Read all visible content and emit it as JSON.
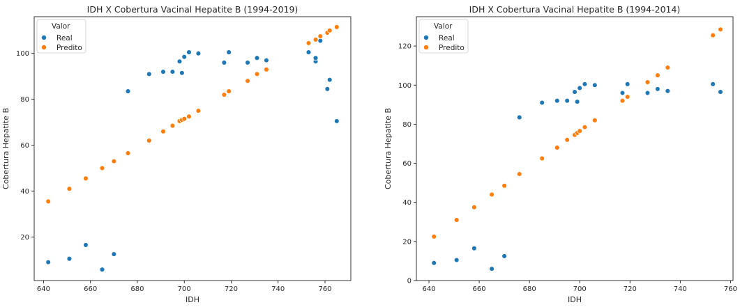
{
  "chart_data": [
    {
      "type": "scatter",
      "title": "IDH X Cobertura Vacinal Hepatite B (1994-2019)",
      "xlabel": "IDH",
      "ylabel": "Cobertura Hepatite B",
      "xlim": [
        636,
        771
      ],
      "ylim": [
        1,
        116
      ],
      "xticks": [
        640,
        660,
        680,
        700,
        720,
        740,
        760
      ],
      "yticks": [
        20,
        40,
        60,
        80,
        100
      ],
      "legend": {
        "title": "Valor",
        "placement": "top-left"
      },
      "grid": false,
      "series": [
        {
          "name": "Real",
          "color": "#1f77b4",
          "points": [
            [
              642,
              9
            ],
            [
              651,
              10.5
            ],
            [
              658,
              16.5
            ],
            [
              665,
              5.8
            ],
            [
              670,
              12.5
            ],
            [
              676,
              83.5
            ],
            [
              685,
              91
            ],
            [
              691,
              92
            ],
            [
              695,
              92
            ],
            [
              698,
              96.5
            ],
            [
              699,
              91.5
            ],
            [
              700,
              98.5
            ],
            [
              702,
              100.5
            ],
            [
              706,
              100
            ],
            [
              717,
              96
            ],
            [
              719,
              100.5
            ],
            [
              727,
              96
            ],
            [
              731,
              98
            ],
            [
              735,
              97
            ],
            [
              753,
              100.5
            ],
            [
              756,
              96.5
            ],
            [
              756,
              98
            ],
            [
              758,
              105.5
            ],
            [
              761,
              84.5
            ],
            [
              762,
              88.5
            ],
            [
              765,
              70.5
            ]
          ]
        },
        {
          "name": "Predito",
          "color": "#ff7f0e",
          "points": [
            [
              642,
              35.5
            ],
            [
              651,
              41
            ],
            [
              658,
              45.5
            ],
            [
              665,
              50
            ],
            [
              670,
              53
            ],
            [
              676,
              56.5
            ],
            [
              685,
              62
            ],
            [
              691,
              66
            ],
            [
              695,
              68.5
            ],
            [
              698,
              70.5
            ],
            [
              699,
              71
            ],
            [
              700,
              71.5
            ],
            [
              702,
              72.5
            ],
            [
              706,
              75
            ],
            [
              717,
              82
            ],
            [
              719,
              83.5
            ],
            [
              727,
              88
            ],
            [
              731,
              91
            ],
            [
              735,
              93
            ],
            [
              753,
              104.5
            ],
            [
              756,
              106
            ],
            [
              758,
              107.5
            ],
            [
              761,
              109
            ],
            [
              762,
              110
            ],
            [
              765,
              111.5
            ]
          ]
        }
      ]
    },
    {
      "type": "scatter",
      "title": "IDH X Cobertura Vacinal Hepatite B (1994-2014)",
      "xlabel": "IDH",
      "ylabel": "Cobertura Hepatite B",
      "xlim": [
        635,
        761
      ],
      "ylim": [
        0,
        135
      ],
      "xticks": [
        640,
        660,
        680,
        700,
        720,
        740,
        760
      ],
      "yticks": [
        0,
        20,
        40,
        60,
        80,
        100,
        120
      ],
      "legend": {
        "title": "Valor",
        "placement": "top-left"
      },
      "grid": false,
      "series": [
        {
          "name": "Real",
          "color": "#1f77b4",
          "points": [
            [
              642,
              9
            ],
            [
              651,
              10.5
            ],
            [
              658,
              16.5
            ],
            [
              665,
              6
            ],
            [
              670,
              12.5
            ],
            [
              676,
              83.5
            ],
            [
              685,
              91
            ],
            [
              691,
              92
            ],
            [
              695,
              92
            ],
            [
              698,
              96.5
            ],
            [
              699,
              91.5
            ],
            [
              700,
              98.5
            ],
            [
              702,
              100.5
            ],
            [
              706,
              100
            ],
            [
              717,
              96
            ],
            [
              719,
              100.5
            ],
            [
              727,
              96
            ],
            [
              731,
              98
            ],
            [
              735,
              97
            ],
            [
              753,
              100.5
            ],
            [
              756,
              96.5
            ]
          ]
        },
        {
          "name": "Predito",
          "color": "#ff7f0e",
          "points": [
            [
              642,
              22.5
            ],
            [
              651,
              31
            ],
            [
              658,
              37.5
            ],
            [
              665,
              44
            ],
            [
              670,
              48.5
            ],
            [
              676,
              54.5
            ],
            [
              685,
              62.5
            ],
            [
              691,
              68
            ],
            [
              695,
              72
            ],
            [
              698,
              74.5
            ],
            [
              699,
              75.5
            ],
            [
              700,
              76.5
            ],
            [
              702,
              78.5
            ],
            [
              706,
              82
            ],
            [
              717,
              92
            ],
            [
              719,
              94
            ],
            [
              727,
              101.5
            ],
            [
              731,
              105
            ],
            [
              735,
              109
            ],
            [
              753,
              125.5
            ],
            [
              756,
              128.5
            ]
          ]
        }
      ]
    }
  ]
}
